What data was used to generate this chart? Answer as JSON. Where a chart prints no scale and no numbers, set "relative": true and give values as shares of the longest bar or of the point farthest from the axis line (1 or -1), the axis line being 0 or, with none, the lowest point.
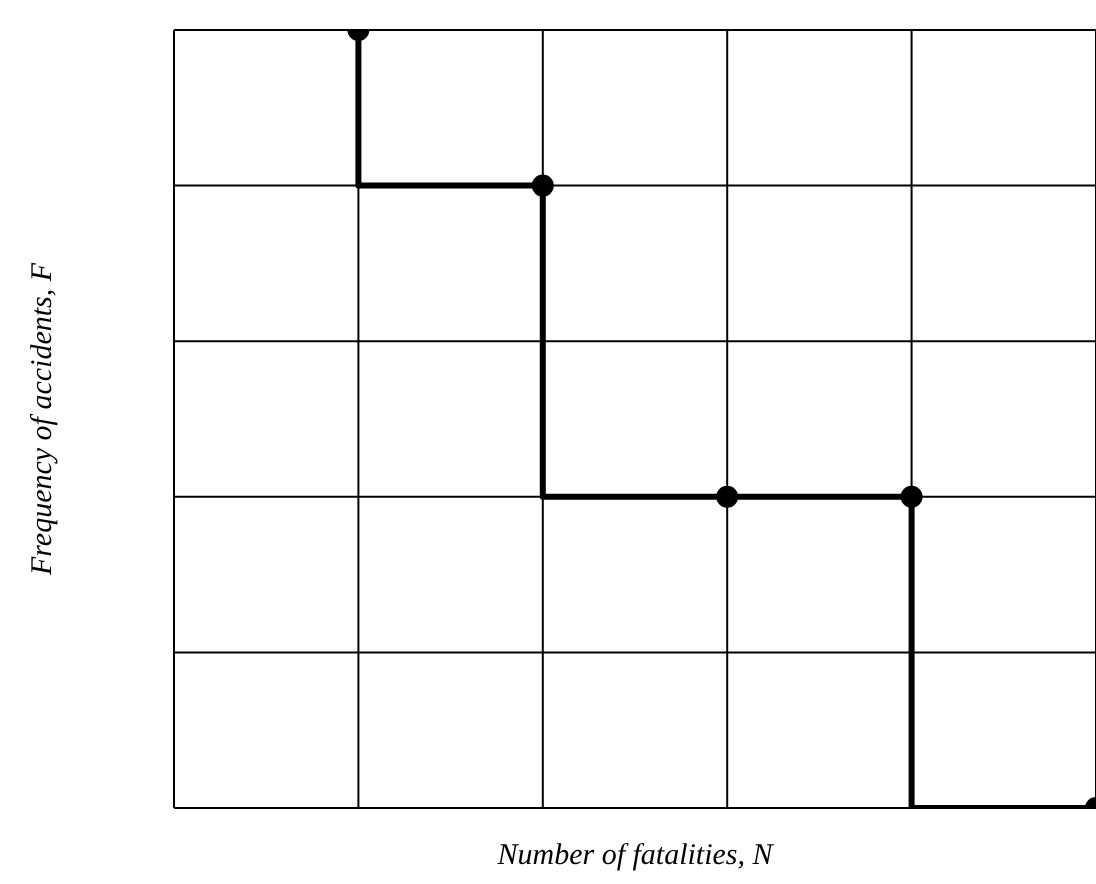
{
  "chart_data": {
    "type": "step",
    "xlabel": "Number of fatalities, N",
    "ylabel": "Frequency of accidents, F",
    "relative": true,
    "categories": [
      null,
      null,
      null,
      null,
      null,
      null
    ],
    "series": [
      {
        "color": "#000000",
        "values": [
          null,
          1,
          0.8,
          0.4,
          0.4,
          0
        ]
      }
    ],
    "grid": true,
    "marker": "circle"
  }
}
